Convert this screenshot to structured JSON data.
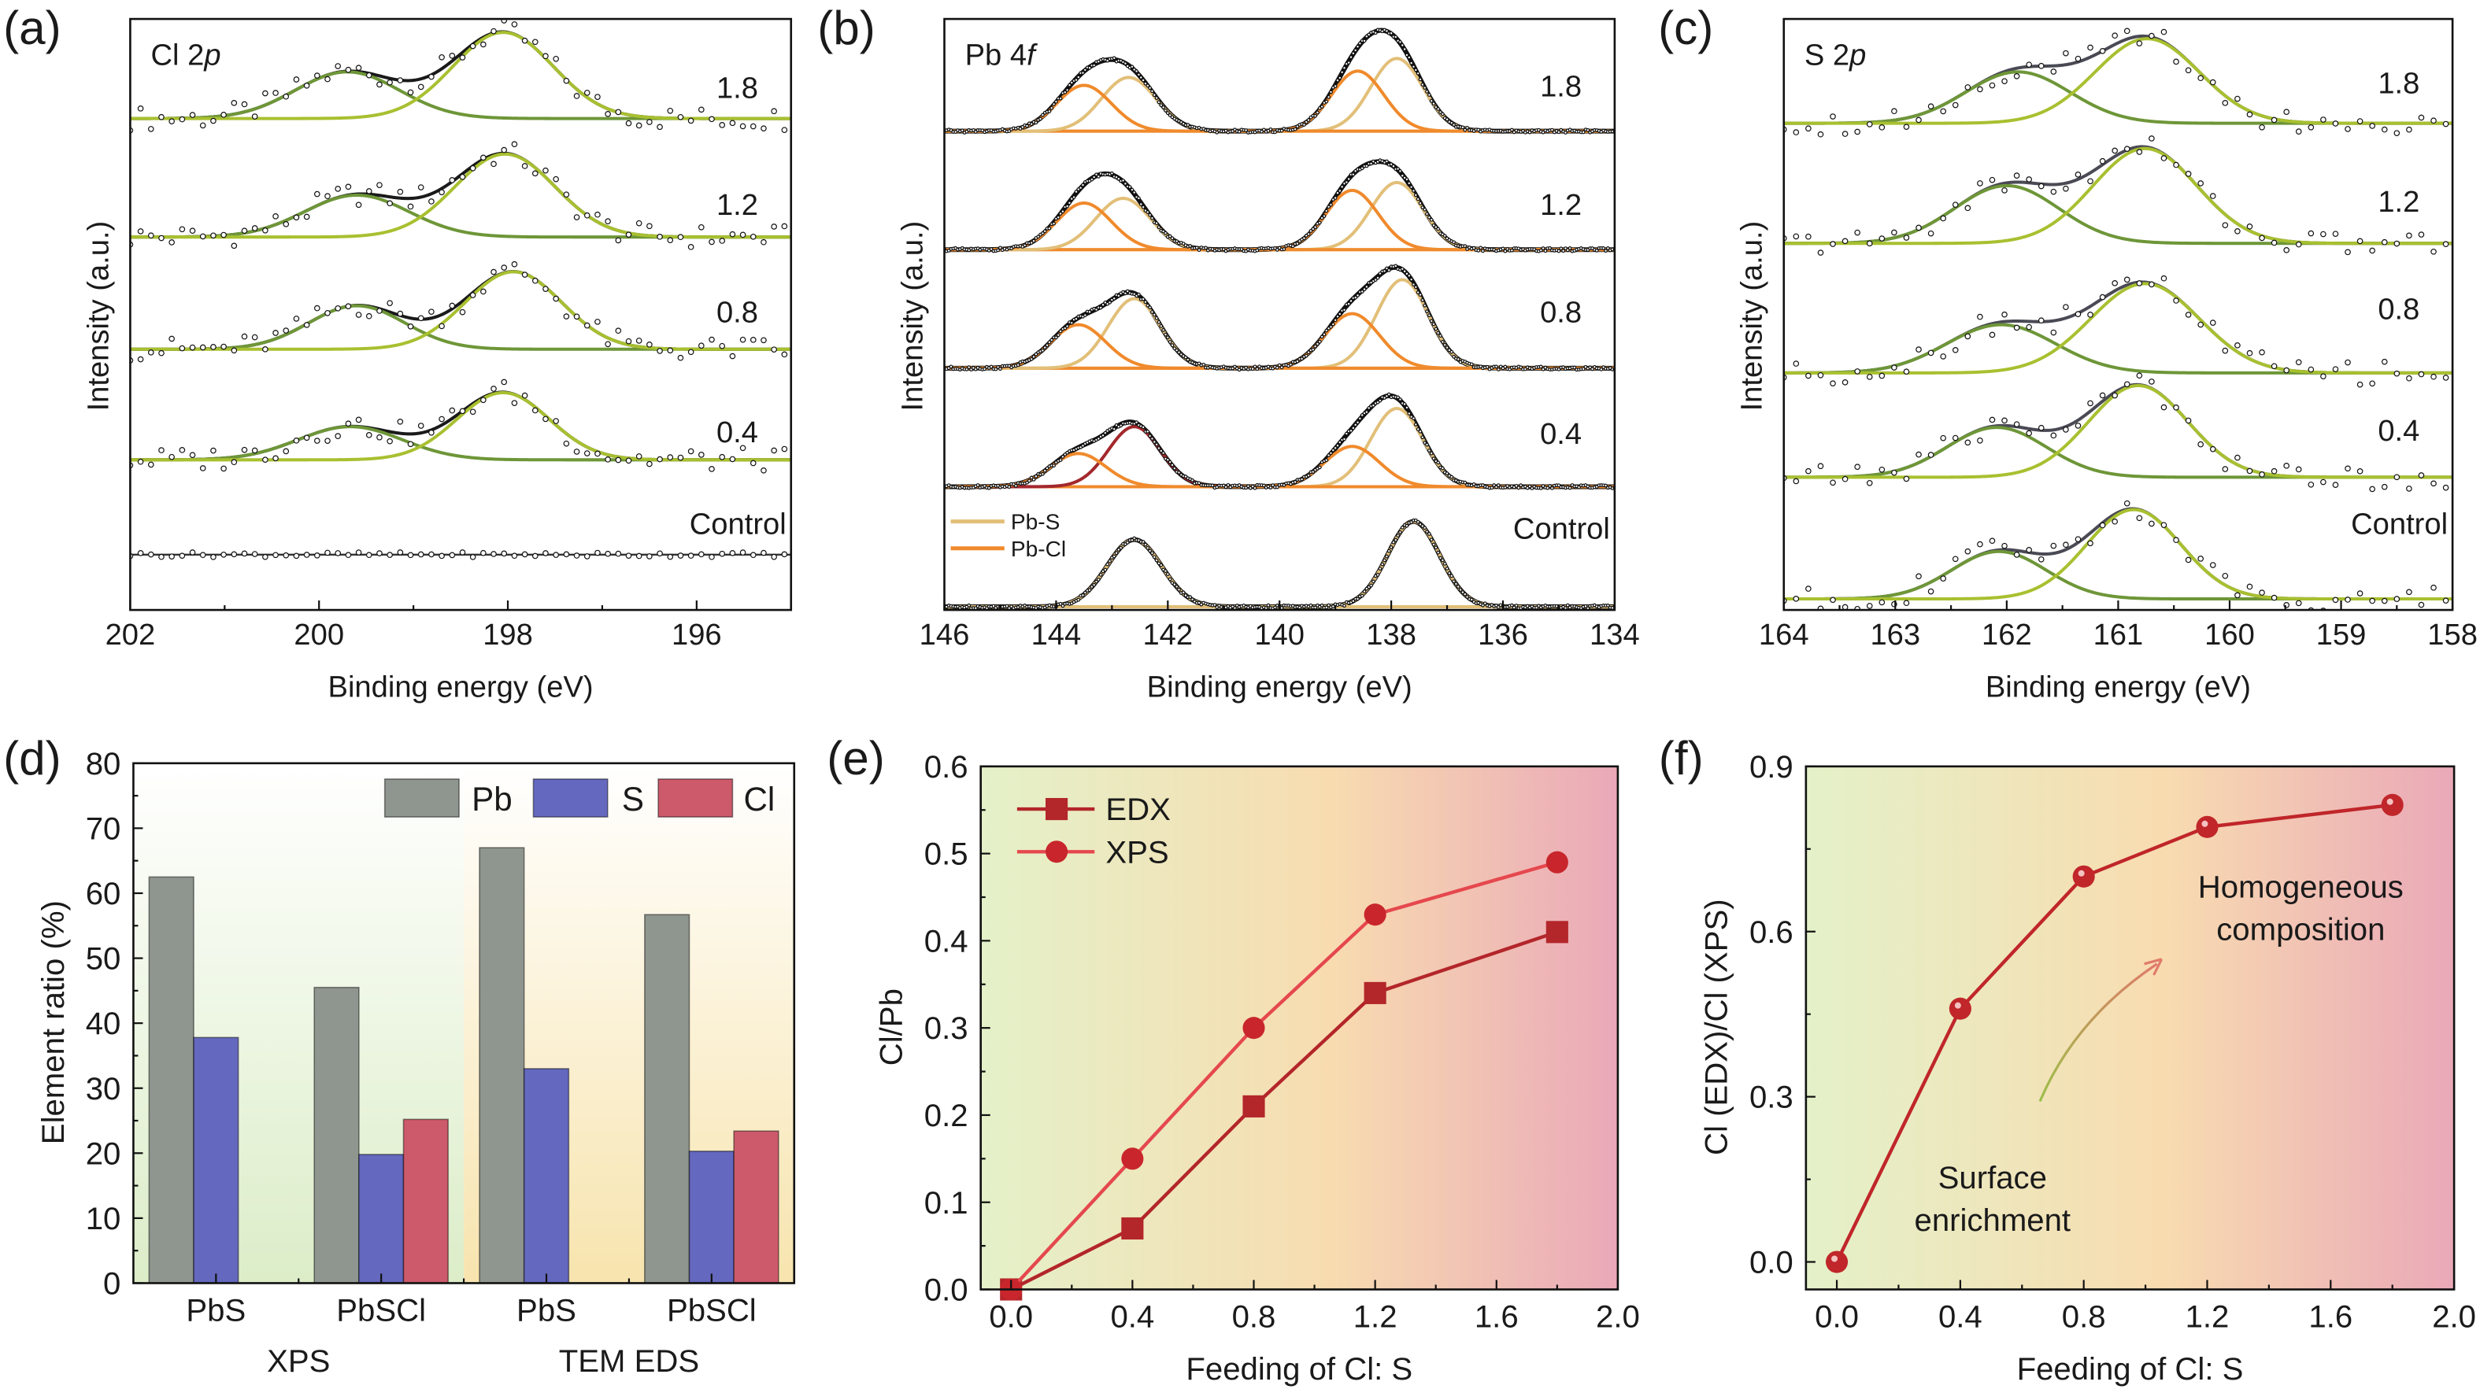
{
  "chart_data": [
    {
      "panel": "(a)",
      "type": "line",
      "title_main": "Cl 2",
      "title_italic": "p",
      "xlabel": "Binding energy (eV)",
      "ylabel": "Intensity (a.u.)",
      "xlim": [
        202,
        195
      ],
      "x_reversed": true,
      "xticks": [
        "202",
        "200",
        "198",
        "196"
      ],
      "envelope_color": "#1a1a1a",
      "traces": [
        {
          "label": "1.8",
          "components": [
            {
              "center": 199.7,
              "fwhm": 1.3,
              "amp": 0.59,
              "color": "#6e9638"
            },
            {
              "center": 198.05,
              "fwhm": 1.25,
              "amp": 1.09,
              "color": "#a8c030"
            }
          ]
        },
        {
          "label": "1.2",
          "components": [
            {
              "center": 199.6,
              "fwhm": 1.3,
              "amp": 0.53,
              "color": "#6e9638"
            },
            {
              "center": 198.03,
              "fwhm": 1.25,
              "amp": 1.05,
              "color": "#a8c030"
            }
          ]
        },
        {
          "label": "0.8",
          "components": [
            {
              "center": 199.6,
              "fwhm": 1.2,
              "amp": 0.55,
              "color": "#6e9638"
            },
            {
              "center": 197.94,
              "fwhm": 1.2,
              "amp": 0.98,
              "color": "#a8c030"
            }
          ]
        },
        {
          "label": "0.4",
          "components": [
            {
              "center": 199.67,
              "fwhm": 1.3,
              "amp": 0.42,
              "color": "#6e9638"
            },
            {
              "center": 198.05,
              "fwhm": 1.15,
              "amp": 0.85,
              "color": "#a8c030"
            }
          ]
        },
        {
          "label": "Control",
          "components": []
        }
      ]
    },
    {
      "panel": "(b)",
      "type": "line",
      "title_main": "Pb 4",
      "title_italic": "f",
      "xlabel": "Binding energy (eV)",
      "ylabel": "Intensity (a.u.)",
      "xlim": [
        146,
        134
      ],
      "x_reversed": true,
      "xticks": [
        "146",
        "144",
        "142",
        "140",
        "138",
        "136",
        "134"
      ],
      "envelope_color": "#111111",
      "legend": [
        {
          "label": "Pb-S",
          "color": "#e2bf78"
        },
        {
          "label": "Pb-Cl",
          "color": "#f08a2c"
        }
      ],
      "traces": [
        {
          "label": "1.8",
          "components": [
            {
              "species": "Pb-S",
              "center": 137.9,
              "fwhm": 1.1,
              "amp": 0.92,
              "color": "#e2bf78"
            },
            {
              "species": "Pb-Cl",
              "center": 138.6,
              "fwhm": 1.1,
              "amp": 0.76,
              "color": "#f08a2c"
            },
            {
              "species": "Pb-S",
              "center": 142.7,
              "fwhm": 1.15,
              "amp": 0.68,
              "color": "#e2bf78"
            },
            {
              "species": "Pb-Cl",
              "center": 143.5,
              "fwhm": 1.15,
              "amp": 0.58,
              "color": "#f08a2c"
            }
          ]
        },
        {
          "label": "1.2",
          "components": [
            {
              "species": "Pb-S",
              "center": 137.9,
              "fwhm": 1.1,
              "amp": 0.85,
              "color": "#e2bf78"
            },
            {
              "species": "Pb-Cl",
              "center": 138.7,
              "fwhm": 1.1,
              "amp": 0.75,
              "color": "#f08a2c"
            },
            {
              "species": "Pb-S",
              "center": 142.8,
              "fwhm": 1.15,
              "amp": 0.65,
              "color": "#e2bf78"
            },
            {
              "species": "Pb-Cl",
              "center": 143.5,
              "fwhm": 1.15,
              "amp": 0.59,
              "color": "#f08a2c"
            }
          ]
        },
        {
          "label": "0.8",
          "components": [
            {
              "species": "Pb-S",
              "center": 137.8,
              "fwhm": 1.1,
              "amp": 1.12,
              "color": "#e2bf78"
            },
            {
              "species": "Pb-Cl",
              "center": 138.7,
              "fwhm": 1.15,
              "amp": 0.69,
              "color": "#f08a2c"
            },
            {
              "species": "Pb-S",
              "center": 142.6,
              "fwhm": 1.1,
              "amp": 0.88,
              "color": "#e2bf78"
            },
            {
              "species": "Pb-Cl",
              "center": 143.6,
              "fwhm": 1.15,
              "amp": 0.55,
              "color": "#f08a2c"
            }
          ]
        },
        {
          "label": "0.4",
          "components": [
            {
              "species": "Pb-S",
              "center": 137.9,
              "fwhm": 1.1,
              "amp": 0.99,
              "color": "#e2bf78"
            },
            {
              "species": "Pb-Cl",
              "center": 138.7,
              "fwhm": 1.15,
              "amp": 0.51,
              "color": "#f08a2c"
            },
            {
              "species": "Pb-S",
              "center": 142.6,
              "fwhm": 1.1,
              "amp": 0.76,
              "color": "#a3282c"
            },
            {
              "species": "Pb-Cl",
              "center": 143.6,
              "fwhm": 1.15,
              "amp": 0.42,
              "color": "#f08a2c"
            }
          ]
        },
        {
          "label": "Control",
          "components": [
            {
              "species": "Pb-S",
              "center": 137.6,
              "fwhm": 1.1,
              "amp": 1.08,
              "color": "#e2bf78"
            },
            {
              "species": "Pb-S",
              "center": 142.6,
              "fwhm": 1.15,
              "amp": 0.85,
              "color": "#e2bf78"
            }
          ]
        }
      ]
    },
    {
      "panel": "(c)",
      "type": "line",
      "title_main": "S 2",
      "title_italic": "p",
      "xlabel": "Binding energy (eV)",
      "ylabel": "Intensity (a.u.)",
      "xlim": [
        164,
        158
      ],
      "x_reversed": true,
      "xticks": [
        "164",
        "163",
        "162",
        "161",
        "160",
        "159",
        "158"
      ],
      "envelope_color": "#4a4a55",
      "traces": [
        {
          "label": "1.8",
          "components": [
            {
              "center": 161.9,
              "fwhm": 1.1,
              "amp": 0.65,
              "color": "#6e9638"
            },
            {
              "center": 160.74,
              "fwhm": 1.1,
              "amp": 1.07,
              "color": "#a8c030"
            }
          ]
        },
        {
          "label": "1.2",
          "components": [
            {
              "center": 162.0,
              "fwhm": 1.1,
              "amp": 0.73,
              "color": "#6e9638"
            },
            {
              "center": 160.76,
              "fwhm": 1.1,
              "amp": 1.2,
              "color": "#a8c030"
            }
          ]
        },
        {
          "label": "0.8",
          "components": [
            {
              "center": 162.05,
              "fwhm": 1.15,
              "amp": 0.61,
              "color": "#6e9638"
            },
            {
              "center": 160.76,
              "fwhm": 1.15,
              "amp": 1.13,
              "color": "#a8c030"
            }
          ]
        },
        {
          "label": "0.4",
          "components": [
            {
              "center": 162.09,
              "fwhm": 1.05,
              "amp": 0.63,
              "color": "#6e9638"
            },
            {
              "center": 160.82,
              "fwhm": 1.05,
              "amp": 1.16,
              "color": "#a8c030"
            }
          ]
        },
        {
          "label": "Control",
          "components": [
            {
              "center": 162.07,
              "fwhm": 1.0,
              "amp": 0.6,
              "color": "#6e9638"
            },
            {
              "center": 160.86,
              "fwhm": 1.0,
              "amp": 1.13,
              "color": "#a8c030"
            }
          ]
        }
      ]
    },
    {
      "panel": "(d)",
      "type": "bar",
      "ylabel": "Element ratio (%)",
      "ylim": [
        0,
        80
      ],
      "yticks": [
        "0",
        "10",
        "20",
        "30",
        "40",
        "50",
        "60",
        "70",
        "80"
      ],
      "categories": [
        "PbS",
        "PbSCl",
        "PbS",
        "PbSCl"
      ],
      "groups": [
        {
          "label": "XPS",
          "categories": [
            0,
            1
          ],
          "background": "#dcedc8"
        },
        {
          "label": "TEM EDS",
          "categories": [
            2,
            3
          ],
          "background": "#f7e4ae"
        }
      ],
      "legend": "top-right",
      "series": [
        {
          "name": "Pb",
          "color": "#8f968f",
          "values": [
            62.5,
            45.5,
            67.0,
            56.7
          ]
        },
        {
          "name": "S",
          "color": "#6468be",
          "values": [
            37.8,
            19.8,
            33.0,
            20.3
          ]
        },
        {
          "name": "Cl",
          "color": "#cc5a6a",
          "values": [
            null,
            25.2,
            null,
            23.4
          ]
        }
      ]
    },
    {
      "panel": "(e)",
      "type": "line",
      "xlabel": "Feeding of Cl: S",
      "ylabel": "Cl/Pb",
      "xlim": [
        -0.1,
        2.0
      ],
      "ylim": [
        0,
        0.6
      ],
      "xticks": [
        "0.0",
        "0.4",
        "0.8",
        "1.2",
        "1.6",
        "2.0"
      ],
      "yticks": [
        "0.0",
        "0.1",
        "0.2",
        "0.3",
        "0.4",
        "0.5",
        "0.6"
      ],
      "legend": "top-left",
      "x": [
        0,
        0.4,
        0.8,
        1.2,
        1.8
      ],
      "series": [
        {
          "name": "EDX",
          "marker": "square",
          "color": "#b3262a",
          "values": [
            0,
            0.07,
            0.21,
            0.34,
            0.41
          ]
        },
        {
          "name": "XPS",
          "marker": "circle",
          "color": "#e5484e",
          "values": [
            0,
            0.15,
            0.3,
            0.43,
            0.49
          ]
        }
      ]
    },
    {
      "panel": "(f)",
      "type": "line",
      "xlabel": "Feeding of Cl: S",
      "ylabel": "Cl (EDX)/Cl (XPS)",
      "xlim": [
        -0.1,
        2.0
      ],
      "ylim": [
        -0.05,
        0.9
      ],
      "xticks": [
        "0.0",
        "0.4",
        "0.8",
        "1.2",
        "1.6",
        "2.0"
      ],
      "yticks": [
        "0.0",
        "0.3",
        "0.6",
        "0.9"
      ],
      "x": [
        0,
        0.4,
        0.8,
        1.2,
        1.8
      ],
      "series": [
        {
          "marker": "sphere",
          "color": "#c0262a",
          "values": [
            0,
            0.46,
            0.7,
            0.79,
            0.83
          ]
        }
      ],
      "annotations": {
        "surface": [
          "Surface",
          "enrichment"
        ],
        "homogeneous": [
          "Homogeneous",
          "composition"
        ],
        "arrow_colors": [
          "#9cbf4a",
          "#e07a6a"
        ]
      }
    }
  ]
}
